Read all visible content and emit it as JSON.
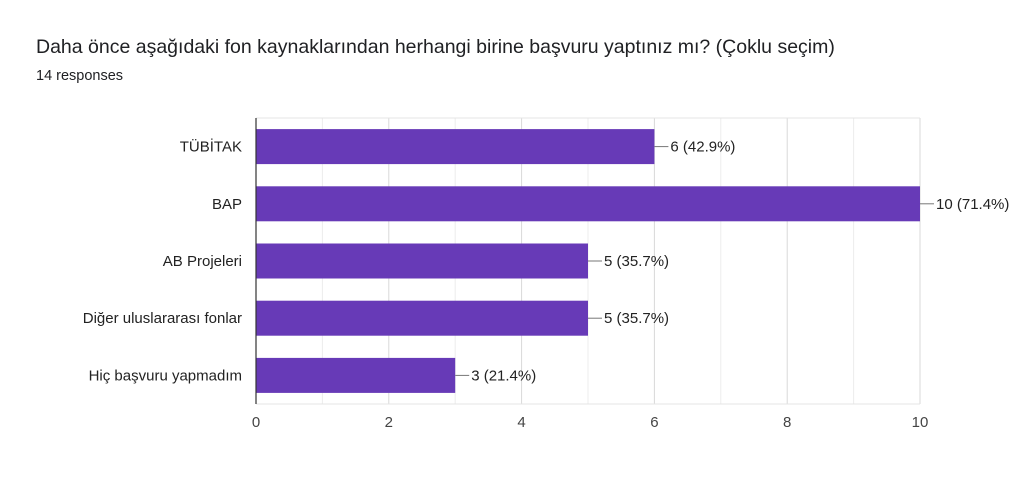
{
  "header": {
    "title": "Daha önce aşağıdaki fon kaynaklarından herhangi birine başvuru yaptınız mı? (Çoklu seçim)",
    "responses": "14 responses"
  },
  "chart_data": {
    "type": "bar",
    "orientation": "horizontal",
    "categories": [
      "TÜBİTAK",
      "BAP",
      "AB Projeleri",
      "Diğer uluslararası fonlar",
      "Hiç başvuru yapmadım"
    ],
    "values": [
      6,
      10,
      5,
      5,
      3
    ],
    "data_labels": [
      "6 (42.9%)",
      "10 (71.4%)",
      "5 (35.7%)",
      "5 (35.7%)",
      "3 (21.4%)"
    ],
    "x_ticks": [
      0,
      2,
      4,
      6,
      8,
      10
    ],
    "xlim": [
      0,
      10
    ],
    "grid": true,
    "legend": "none",
    "bar_color": "#673ab7"
  }
}
